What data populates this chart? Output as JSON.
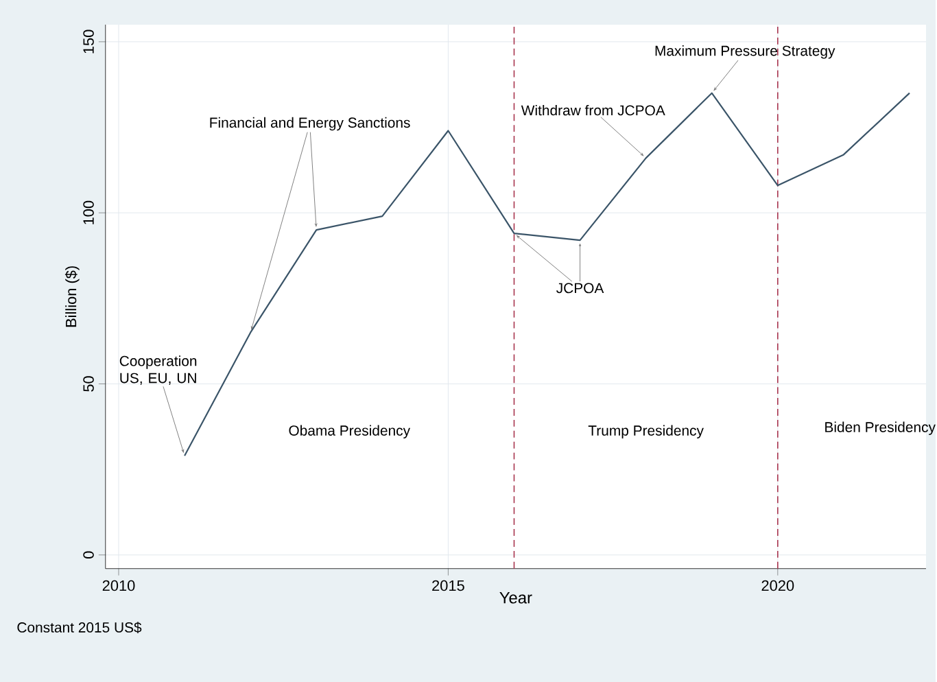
{
  "chart_data": {
    "type": "line",
    "xlabel": "Year",
    "ylabel": "Billion ($)",
    "x": [
      2011,
      2012,
      2013,
      2014,
      2015,
      2016,
      2017,
      2018,
      2019,
      2020,
      2021,
      2022
    ],
    "series": [
      {
        "color": "#3a5468",
        "values": [
          29,
          65,
          95,
          99,
          124,
          94,
          92,
          116,
          135,
          108,
          117,
          135
        ]
      }
    ],
    "xlim": [
      2009.8,
      2022.25
    ],
    "ylim": [
      -4,
      155
    ],
    "xticks": [
      2010,
      2015,
      2020
    ],
    "yticks": [
      0,
      50,
      100,
      150
    ],
    "grid": true,
    "marker": "none",
    "line_style": "solid",
    "ref_lines": [
      {
        "axis": "x",
        "value": 2016,
        "color": "#a8344e",
        "line_style": "dashed"
      },
      {
        "axis": "x",
        "value": 2020,
        "color": "#a8344e",
        "line_style": "dashed"
      }
    ],
    "annotations": [
      {
        "text": "Cooperation US, EU, UN",
        "x": 2011,
        "y": 29
      },
      {
        "text": "Financial and Energy Sanctions",
        "x": 2013,
        "y": 95
      },
      {
        "text": "Withdraw from JCPOA",
        "x": 2018,
        "y": 116
      },
      {
        "text": "Maximum Pressure Strategy",
        "x": 2019,
        "y": 135
      },
      {
        "text": "JCPOA",
        "x": 2017,
        "y": 92
      },
      "Obama Presidency",
      "Trump Presidency",
      "Biden Presidency",
      "Constant 2015 US$"
    ]
  }
}
